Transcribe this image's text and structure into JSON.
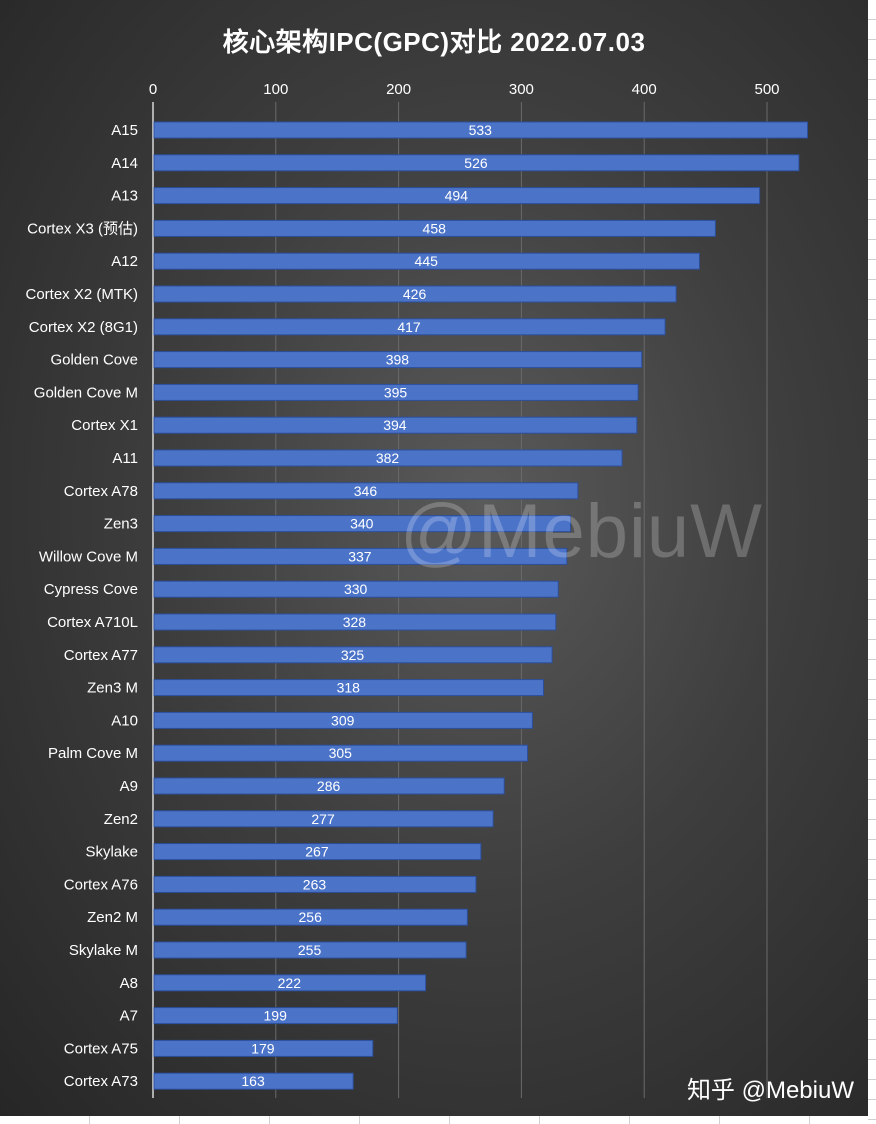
{
  "title": "核心架构IPC(GPC)对比 2022.07.03",
  "watermark": "@MebiuW",
  "credit": "知乎 @MebiuW",
  "colors": {
    "bar": "#4b74c9",
    "bar_edge": "#2c4f9c",
    "text": "#ffffff",
    "grid": "#6a6a6a"
  },
  "chart_data": {
    "type": "bar",
    "orientation": "horizontal",
    "title": "核心架构IPC(GPC)对比 2022.07.03",
    "xlabel": "",
    "ylabel": "",
    "xlim": [
      0,
      550
    ],
    "xticks": [
      0,
      100,
      200,
      300,
      400,
      500
    ],
    "axis_position": "top",
    "grid": true,
    "legend": "none",
    "categories": [
      "A15",
      "A14",
      "A13",
      "Cortex X3 (预估)",
      "A12",
      "Cortex X2 (MTK)",
      "Cortex X2 (8G1)",
      "Golden Cove",
      "Golden Cove M",
      "Cortex X1",
      "A11",
      "Cortex A78",
      "Zen3",
      "Willow Cove M",
      "Cypress Cove",
      "Cortex A710L",
      "Cortex A77",
      "Zen3 M",
      "A10",
      "Palm Cove M",
      "A9",
      "Zen2",
      "Skylake",
      "Cortex A76",
      "Zen2 M",
      "Skylake M",
      "A8",
      "A7",
      "Cortex A75",
      "Cortex A73"
    ],
    "values": [
      533,
      526,
      494,
      458,
      445,
      426,
      417,
      398,
      395,
      394,
      382,
      346,
      340,
      337,
      330,
      328,
      325,
      318,
      309,
      305,
      286,
      277,
      267,
      263,
      256,
      255,
      222,
      199,
      179,
      163
    ]
  }
}
